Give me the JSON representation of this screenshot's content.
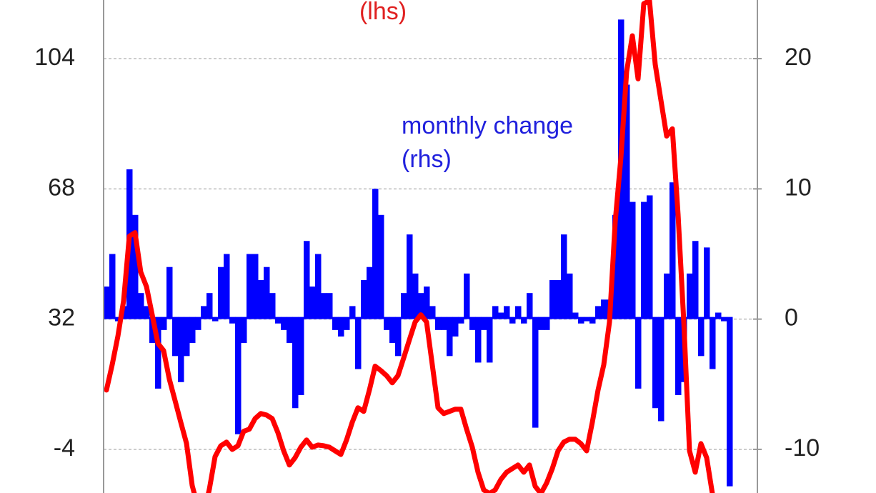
{
  "chart_data": {
    "type": "bar-line",
    "annotations": [
      "(lhs)",
      "monthly change",
      "(rhs)"
    ],
    "categories": [
      null,
      null,
      null,
      null,
      null,
      null,
      null,
      null,
      null,
      null,
      null,
      null,
      null,
      null,
      null,
      null,
      null,
      null,
      null,
      null,
      null,
      null,
      null,
      null,
      null,
      null,
      null,
      null,
      null,
      null,
      null,
      null,
      null,
      null,
      null,
      null,
      null,
      null,
      null,
      null,
      null,
      null,
      null,
      null,
      null,
      null,
      null,
      null,
      null,
      null,
      null,
      null,
      null,
      null,
      null,
      null,
      null,
      null,
      null,
      null,
      null,
      null,
      null,
      null,
      null,
      null,
      null,
      null,
      null,
      null,
      null,
      null,
      null,
      null,
      null,
      null,
      null,
      null,
      null,
      null,
      null,
      null,
      null,
      null,
      null,
      null,
      null,
      null,
      null,
      null,
      null,
      null,
      null,
      null,
      null,
      null,
      null,
      null,
      null,
      null,
      null,
      null,
      null,
      null,
      null,
      null,
      null,
      null,
      null,
      null
    ],
    "series": [
      {
        "type": "bar",
        "axis": "y2",
        "color": "#0000ff",
        "values": [
          2.5,
          5,
          0,
          1,
          11.5,
          8,
          2,
          1,
          -2,
          -5.5,
          -1,
          4,
          -3,
          -5,
          -3,
          -2,
          -1,
          1,
          2,
          0,
          4,
          5,
          -0.5,
          -9,
          -2,
          5,
          5,
          3,
          4,
          2,
          -0.5,
          -1,
          -2,
          -7,
          -6,
          6,
          2.5,
          5,
          2,
          2,
          -1,
          -1.5,
          -1,
          1,
          -4,
          3,
          4,
          10,
          8,
          -1,
          -2,
          -3,
          2,
          6.5,
          3.5,
          2,
          2.5,
          1,
          -1,
          -1,
          -3,
          -1.5,
          -0.5,
          3.5,
          -1,
          -3.5,
          -1,
          -3.5,
          1,
          0.5,
          1,
          -0.5,
          1,
          -0.5,
          2,
          -8.5,
          -1,
          -1,
          3,
          3,
          6.5,
          3.5,
          0.5,
          -0.5,
          0,
          -0.5,
          1,
          1.5,
          1.5,
          8,
          23,
          18,
          9,
          -5.5,
          9,
          9.5,
          -7,
          -8,
          3.5,
          10.5,
          -6,
          -5,
          3.5,
          6,
          -3,
          5.5,
          -4,
          0.5,
          0,
          -13
        ]
      },
      {
        "type": "line",
        "axis": "y",
        "color": "#ff0000",
        "values": [
          12.4,
          19.4,
          27.3,
          37.1,
          54.9,
          55.9,
          45,
          41,
          33.2,
          25.3,
          23.3,
          15.4,
          9.5,
          3.5,
          -2.3,
          -14,
          -20,
          -22,
          -15,
          -6,
          -3,
          -2,
          -4,
          -3,
          1,
          1.6,
          4.5,
          5.9,
          5.5,
          4.5,
          0.6,
          -4.4,
          -8.3,
          -6.3,
          -3.4,
          -1.4,
          -3.4,
          -2.8,
          -3,
          -3.4,
          -4.4,
          -5.4,
          -1.4,
          3.5,
          7.5,
          6.5,
          12.4,
          19,
          17.8,
          16.4,
          14.4,
          16.4,
          21.3,
          26.3,
          31.2,
          33.2,
          31.2,
          19.4,
          7.5,
          5.9,
          6.5,
          7.1,
          7.1,
          1.6,
          -3.4,
          -10.3,
          -15.2,
          -16.2,
          -15.2,
          -12.3,
          -10.3,
          -9.3,
          -8.3,
          -10.3,
          -8.3,
          -14.2,
          -16.2,
          -13.3,
          -9.3,
          -4.4,
          -2,
          -1.2,
          -1.2,
          -2.4,
          -4.4,
          3.5,
          12.4,
          19.4,
          31.2,
          58.9,
          76.7,
          100.4,
          110.3,
          98.4,
          119.2,
          120,
          102.4,
          92.5,
          82.6,
          84.6,
          60.9,
          31.2,
          -4.4,
          -10.3,
          -2.4,
          -6.3,
          -16.2,
          null,
          null,
          null
        ]
      }
    ],
    "ylim": [
      -16.05,
      120.2
    ],
    "yticks": [
      -4,
      32,
      68,
      104
    ],
    "y2lim": [
      -13.35,
      24.5
    ],
    "y2ticks": [
      -10,
      0,
      10,
      20
    ],
    "grid": true
  }
}
